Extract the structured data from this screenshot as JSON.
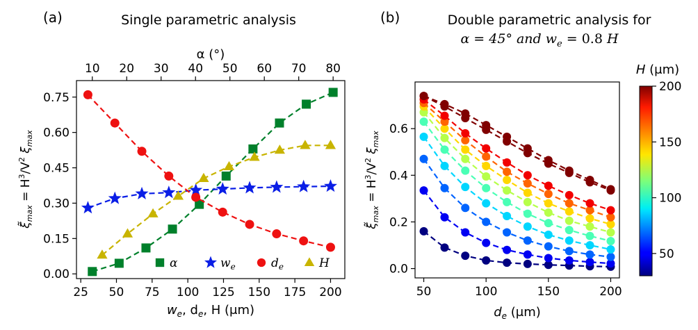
{
  "chart_data": [
    {
      "type": "line",
      "panel_label": "(a)",
      "title": "Single parametric analysis",
      "xlabel": "w_e, d_e, H (μm)",
      "xlabel_parts": [
        "w",
        "e",
        ", d",
        "e",
        ", H (μm)"
      ],
      "ylabel": "ξ̃_max = H³/V² ξ_max",
      "ylabel_parts": [
        "ξ̃",
        "max",
        " = H",
        "3",
        "/V",
        "2",
        " ξ",
        "max"
      ],
      "top_xlabel": "α (°)",
      "xlim": [
        22,
        210
      ],
      "ylim": [
        -0.02,
        0.82
      ],
      "xticks": [
        25,
        50,
        75,
        100,
        125,
        150,
        175,
        200
      ],
      "yticks": [
        0.0,
        0.15,
        0.3,
        0.45,
        0.6,
        0.75
      ],
      "ytick_labels": [
        "0.00",
        "0.15",
        "0.30",
        "0.45",
        "0.60",
        "0.75"
      ],
      "top_xlim": [
        5.4,
        83.4
      ],
      "top_xticks": [
        10,
        20,
        30,
        40,
        50,
        60,
        70,
        80
      ],
      "legend_position": "bottom-right",
      "series": [
        {
          "name": "α",
          "label_parts": [
            "α",
            ""
          ],
          "color": "#00802b",
          "marker": "square",
          "axis": "top",
          "x": [
            10,
            17.8,
            25.6,
            33.3,
            41.1,
            48.9,
            56.7,
            64.4,
            72.2,
            80
          ],
          "y": [
            0.01,
            0.045,
            0.11,
            0.19,
            0.295,
            0.415,
            0.53,
            0.64,
            0.72,
            0.77
          ]
        },
        {
          "name": "w_e",
          "label_parts": [
            "w",
            "e"
          ],
          "color": "#0a1ee6",
          "marker": "star",
          "axis": "bottom",
          "x": [
            30,
            48.9,
            67.8,
            86.7,
            105.6,
            124.4,
            143.3,
            162.2,
            181.1,
            200
          ],
          "y": [
            0.28,
            0.32,
            0.34,
            0.345,
            0.355,
            0.36,
            0.365,
            0.368,
            0.37,
            0.372
          ]
        },
        {
          "name": "d_e",
          "label_parts": [
            "d",
            "e"
          ],
          "color": "#ee1111",
          "marker": "circle",
          "axis": "bottom",
          "x": [
            30,
            48.9,
            67.8,
            86.7,
            105.6,
            124.4,
            143.3,
            162.2,
            181.1,
            200
          ],
          "y": [
            0.76,
            0.64,
            0.52,
            0.415,
            0.325,
            0.262,
            0.21,
            0.17,
            0.14,
            0.113
          ]
        },
        {
          "name": "H",
          "label_parts": [
            "H",
            ""
          ],
          "color": "#c8b400",
          "marker": "triangle",
          "axis": "bottom",
          "x": [
            40,
            57.8,
            75.6,
            93.3,
            111.1,
            128.9,
            146.7,
            164.4,
            182.2,
            200
          ],
          "y": [
            0.08,
            0.17,
            0.255,
            0.33,
            0.405,
            0.455,
            0.495,
            0.525,
            0.545,
            0.545
          ]
        }
      ]
    },
    {
      "type": "line",
      "panel_label": "(b)",
      "title_line1": "Double parametric analysis for",
      "title_line2": "α = 45° and w_e = 0.8 H",
      "title_line2_parts": [
        "α = 45° and w",
        "e",
        " = 0.8 ",
        "H"
      ],
      "xlabel": "d_e (μm)",
      "xlabel_parts": [
        "d",
        "e",
        " (μm)"
      ],
      "ylabel": "ξ̃_max = H³/V² ξ_max",
      "ylabel_parts": [
        "ξ̃",
        "max",
        " = H",
        "3",
        "/V",
        "2",
        " ξ",
        "max"
      ],
      "xlim": [
        43,
        207
      ],
      "ylim": [
        -0.04,
        0.8
      ],
      "xticks": [
        50,
        100,
        150,
        200
      ],
      "yticks": [
        0.0,
        0.2,
        0.4,
        0.6
      ],
      "ytick_labels": [
        "0.0",
        "0.2",
        "0.4",
        "0.6"
      ],
      "x": [
        50,
        66.7,
        83.3,
        100,
        116.7,
        133.3,
        150,
        166.7,
        183.3,
        200
      ],
      "colorbar": {
        "label": "H (μm)",
        "label_parts": [
          "H",
          " (μm)"
        ],
        "range": [
          30,
          200
        ],
        "ticks": [
          50,
          100,
          150,
          200
        ],
        "colormap": "jet"
      },
      "series": [
        {
          "name": "H = 30 μm",
          "H": 30,
          "y": [
            0.16,
            0.09,
            0.055,
            0.035,
            0.025,
            0.02,
            0.016,
            0.013,
            0.01,
            0.008
          ]
        },
        {
          "name": "H = 49 μm",
          "H": 49,
          "y": [
            0.335,
            0.22,
            0.155,
            0.11,
            0.08,
            0.06,
            0.045,
            0.035,
            0.028,
            0.022
          ]
        },
        {
          "name": "H = 68 μm",
          "H": 68,
          "y": [
            0.47,
            0.345,
            0.26,
            0.2,
            0.155,
            0.12,
            0.095,
            0.075,
            0.06,
            0.05
          ]
        },
        {
          "name": "H = 87 μm",
          "H": 87,
          "y": [
            0.565,
            0.44,
            0.35,
            0.28,
            0.225,
            0.18,
            0.145,
            0.12,
            0.1,
            0.082
          ]
        },
        {
          "name": "H = 106 μm",
          "H": 106,
          "y": [
            0.63,
            0.51,
            0.42,
            0.345,
            0.285,
            0.235,
            0.195,
            0.165,
            0.14,
            0.118
          ]
        },
        {
          "name": "H = 124 μm",
          "H": 124,
          "y": [
            0.67,
            0.56,
            0.47,
            0.395,
            0.335,
            0.285,
            0.24,
            0.205,
            0.18,
            0.155
          ]
        },
        {
          "name": "H = 143 μm",
          "H": 143,
          "y": [
            0.695,
            0.6,
            0.51,
            0.44,
            0.38,
            0.325,
            0.28,
            0.245,
            0.215,
            0.19
          ]
        },
        {
          "name": "H = 162 μm",
          "H": 162,
          "y": [
            0.71,
            0.63,
            0.55,
            0.48,
            0.415,
            0.365,
            0.32,
            0.28,
            0.25,
            0.22
          ]
        },
        {
          "name": "H = 181 μm",
          "H": 181,
          "y": [
            0.725,
            0.655,
            0.58,
            0.515,
            0.455,
            0.4,
            0.355,
            0.315,
            0.28,
            0.25
          ]
        },
        {
          "name": "H = 200 μm",
          "H": 200,
          "y": [
            0.74,
            0.695,
            0.645,
            0.595,
            0.545,
            0.495,
            0.45,
            0.41,
            0.37,
            0.335
          ]
        },
        {
          "name": "H = 210 μm",
          "H": 210,
          "y": [
            0.74,
            0.705,
            0.665,
            0.615,
            0.565,
            0.515,
            0.465,
            0.42,
            0.38,
            0.34
          ]
        }
      ]
    }
  ]
}
